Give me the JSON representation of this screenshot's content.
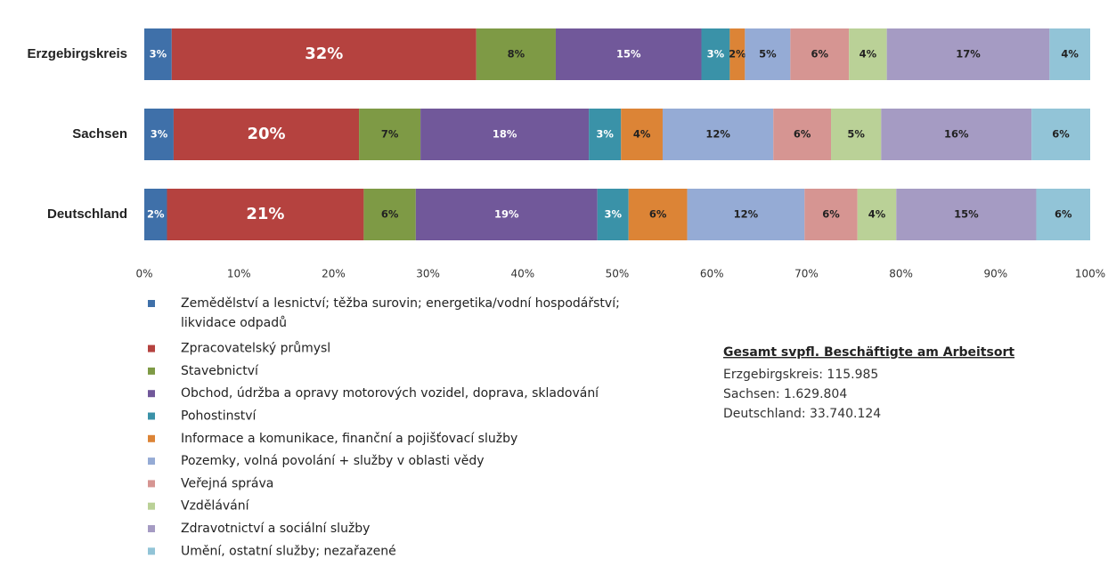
{
  "chart_data": {
    "type": "stacked_barh",
    "categories": [
      "Erzgebirgskreis",
      "Sachsen",
      "Deutschland"
    ],
    "series": [
      {
        "name": "Zemědělství a lesnictví; těžba surovin; energetika/vodní hospodářství; likvidace odpadů",
        "color": "#3f70a9",
        "values": [
          2.9,
          3.1,
          2.4
        ],
        "value_labels": [
          "3%",
          "3%",
          "2%"
        ]
      },
      {
        "name": "Zpracovatelský průmysl",
        "color": "#b5423f",
        "values": [
          32.2,
          19.6,
          20.8
        ],
        "value_labels": [
          "32%",
          "20%",
          "21%"
        ]
      },
      {
        "name": "Stavebnictví",
        "color": "#7e9a45",
        "values": [
          8.4,
          6.5,
          5.5
        ],
        "value_labels": [
          "8%",
          "7%",
          "6%"
        ]
      },
      {
        "name": "Obchod, údržba a opravy motorových vozidel, doprava, skladování",
        "color": "#71589a",
        "values": [
          15.4,
          17.8,
          19.2
        ],
        "value_labels": [
          "15%",
          "18%",
          "19%"
        ]
      },
      {
        "name": "Pohostinství",
        "color": "#3a92a8",
        "values": [
          3.0,
          3.4,
          3.3
        ],
        "value_labels": [
          "3%",
          "3%",
          "3%"
        ]
      },
      {
        "name": "Informace a komunikace, finanční a pojišťovací služby",
        "color": "#dc8436",
        "values": [
          1.6,
          4.4,
          6.2
        ],
        "value_labels": [
          "2%",
          "4%",
          "6%"
        ]
      },
      {
        "name": "Pozemky, volná povolání + služby v oblasti vědy",
        "color": "#95abd5",
        "values": [
          4.8,
          11.7,
          12.4
        ],
        "value_labels": [
          "5%",
          "12%",
          "12%"
        ]
      },
      {
        "name": "Veřejná správa",
        "color": "#d69592",
        "values": [
          6.2,
          6.1,
          5.6
        ],
        "value_labels": [
          "6%",
          "6%",
          "6%"
        ]
      },
      {
        "name": "Vzdělávání",
        "color": "#bad197",
        "values": [
          4.0,
          5.3,
          4.1
        ],
        "value_labels": [
          "4%",
          "5%",
          "4%"
        ]
      },
      {
        "name": "Zdravotnictví a sociální služby",
        "color": "#a59bc3",
        "values": [
          17.2,
          15.9,
          14.8
        ],
        "value_labels": [
          "17%",
          "16%",
          "15%"
        ]
      },
      {
        "name": "Umění, ostatní služby; nezařazené",
        "color": "#92c4d7",
        "values": [
          4.3,
          6.2,
          5.7
        ],
        "value_labels": [
          "4%",
          "6%",
          "6%"
        ]
      }
    ],
    "xlim": [
      0,
      100
    ],
    "xticks": [
      {
        "value": 0,
        "label": "0%"
      },
      {
        "value": 10,
        "label": "10%"
      },
      {
        "value": 20,
        "label": "20%"
      },
      {
        "value": 30,
        "label": "30%"
      },
      {
        "value": 40,
        "label": "40%"
      },
      {
        "value": 50,
        "label": "50%"
      },
      {
        "value": 60,
        "label": "60%"
      },
      {
        "value": 70,
        "label": "70%"
      },
      {
        "value": 80,
        "label": "80%"
      },
      {
        "value": 90,
        "label": "90%"
      },
      {
        "value": 100,
        "label": "100%"
      }
    ],
    "annotation": {
      "title": "Gesamt svpfl. Beschäftigte  am Arbeitsort",
      "lines": [
        "Erzgebirgskreis:  115.985",
        "Sachsen:  1.629.804",
        "Deutschland:  33.740.124"
      ]
    }
  }
}
